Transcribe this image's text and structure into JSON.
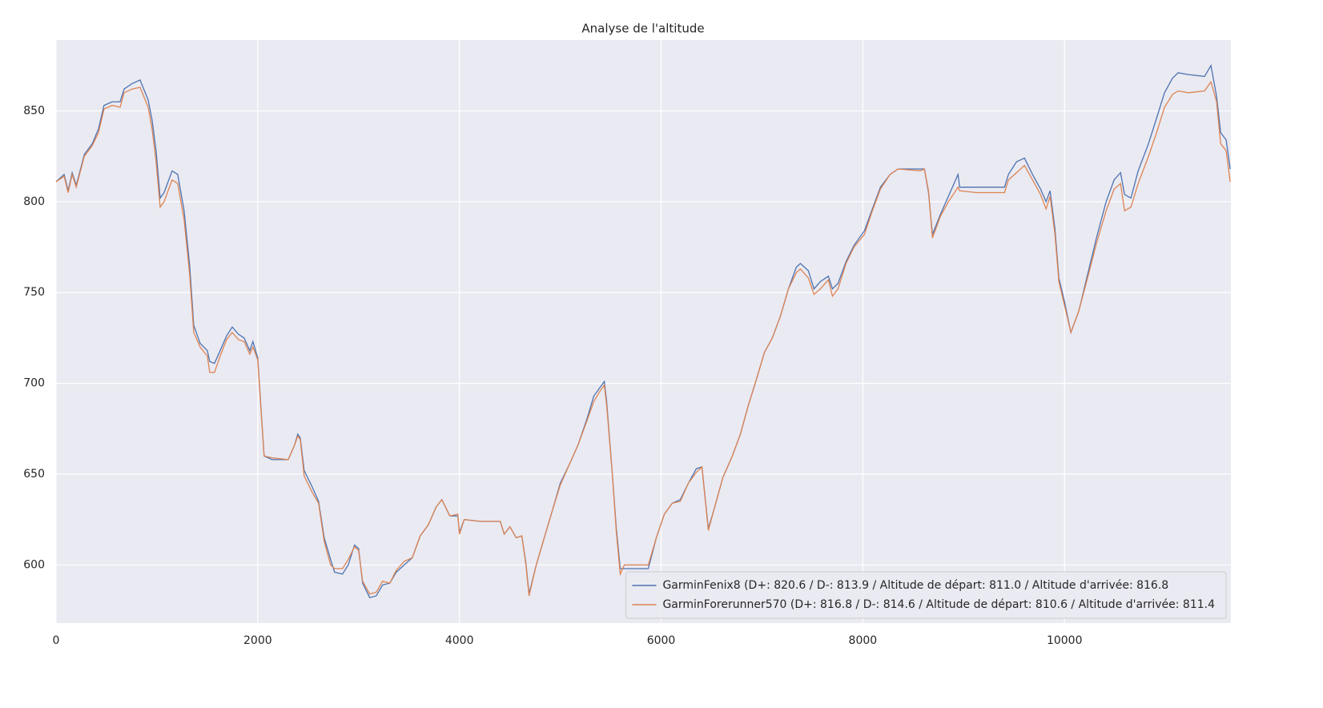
{
  "chart_data": {
    "type": "line",
    "title": "Analyse de l'altitude",
    "x": [
      0,
      80,
      120,
      160,
      200,
      280,
      360,
      420,
      476,
      556,
      635,
      675,
      754,
      833,
      913,
      952,
      992,
      1032,
      1071,
      1151,
      1206,
      1270,
      1325,
      1365,
      1429,
      1500,
      1524,
      1571,
      1627,
      1690,
      1746,
      1810,
      1865,
      1921,
      1952,
      2000,
      2063,
      2143,
      2302,
      2365,
      2397,
      2421,
      2460,
      2540,
      2603,
      2659,
      2722,
      2762,
      2841,
      2897,
      2960,
      3000,
      3040,
      3111,
      3175,
      3238,
      3310,
      3373,
      3452,
      3532,
      3611,
      3690,
      3770,
      3825,
      3905,
      3984,
      4000,
      4048,
      4206,
      4405,
      4444,
      4500,
      4563,
      4619,
      4659,
      4690,
      4762,
      4841,
      4921,
      5000,
      5095,
      5175,
      5262,
      5333,
      5397,
      5437,
      5460,
      5516,
      5556,
      5595,
      5635,
      5873,
      5952,
      6032,
      6111,
      6190,
      6270,
      6349,
      6405,
      6468,
      6532,
      6611,
      6706,
      6786,
      6865,
      6944,
      7024,
      7103,
      7183,
      7262,
      7341,
      7381,
      7460,
      7516,
      7579,
      7659,
      7698,
      7754,
      7833,
      7913,
      8016,
      8095,
      8175,
      8270,
      8349,
      8571,
      8611,
      8651,
      8690,
      8770,
      8849,
      8944,
      8960,
      9127,
      9405,
      9444,
      9524,
      9603,
      9683,
      9762,
      9817,
      9857,
      9905,
      9944,
      10000,
      10063,
      10143,
      10238,
      10317,
      10413,
      10492,
      10556,
      10595,
      10659,
      10730,
      10833,
      10913,
      10992,
      11071,
      11127,
      11230,
      11389,
      11452,
      11508,
      11548,
      11603,
      11643
    ],
    "series": [
      {
        "name": "GarminFenix8 (D+: 820.6 / D-: 813.9 / Altitude de départ: 811.0 / Altitude d'arrivée: 816.8",
        "color": "#4c72b0",
        "values": [
          811,
          815,
          806,
          816,
          809,
          826,
          832,
          840,
          853,
          855,
          855,
          862,
          865,
          867,
          856,
          845,
          828,
          802,
          805,
          817,
          815,
          795,
          765,
          732,
          722,
          718,
          712,
          711,
          718,
          726,
          731,
          727,
          725,
          718,
          723,
          714,
          660,
          658,
          658,
          666,
          672,
          670,
          652,
          643,
          635,
          615,
          603,
          596,
          595,
          600,
          611,
          609,
          590,
          582,
          583,
          589,
          590,
          596,
          600,
          604,
          616,
          622,
          632,
          636,
          627,
          627,
          618,
          625,
          624,
          624,
          617,
          621,
          615,
          616,
          601,
          584,
          600,
          615,
          630,
          645,
          656,
          666,
          680,
          693,
          698,
          701,
          690,
          650,
          620,
          598,
          598,
          598,
          615,
          628,
          634,
          636,
          645,
          653,
          654,
          620,
          632,
          648,
          660,
          672,
          688,
          702,
          717,
          725,
          737,
          752,
          764,
          766,
          762,
          752,
          756,
          759,
          752,
          755,
          767,
          776,
          784,
          796,
          808,
          815,
          818,
          818,
          818,
          805,
          782,
          793,
          803,
          815,
          808,
          808,
          808,
          815,
          822,
          824,
          815,
          807,
          800,
          806,
          785,
          758,
          745,
          728,
          740,
          762,
          780,
          800,
          812,
          816,
          804,
          802,
          817,
          832,
          846,
          860,
          868,
          871,
          870,
          869,
          875,
          858,
          838,
          834,
          818
        ]
      },
      {
        "name": "GarminForerunner570 (D+: 816.8 / D-: 814.6 / Altitude de départ: 810.6 / Altitude d'arrivée: 811.4",
        "color": "#dd8452",
        "values": [
          811,
          814,
          805,
          815,
          808,
          825,
          831,
          838,
          851,
          853,
          852,
          860,
          862,
          863,
          852,
          840,
          822,
          797,
          800,
          812,
          810,
          790,
          760,
          728,
          720,
          715,
          706,
          706,
          715,
          724,
          728,
          724,
          723,
          716,
          720,
          713,
          660,
          659,
          658,
          666,
          671,
          669,
          649,
          640,
          634,
          613,
          600,
          598,
          598,
          603,
          610,
          608,
          591,
          584,
          585,
          591,
          590,
          597,
          602,
          604,
          616,
          622,
          632,
          636,
          627,
          628,
          617,
          625,
          624,
          624,
          617,
          621,
          615,
          616,
          600,
          583,
          600,
          615,
          630,
          644,
          656,
          666,
          679,
          690,
          696,
          699,
          688,
          650,
          618,
          595,
          600,
          600,
          615,
          628,
          634,
          635,
          645,
          651,
          654,
          619,
          632,
          648,
          660,
          672,
          688,
          702,
          717,
          725,
          737,
          752,
          761,
          763,
          758,
          749,
          752,
          757,
          748,
          752,
          766,
          775,
          782,
          795,
          807,
          815,
          818,
          817,
          818,
          806,
          780,
          792,
          800,
          808,
          806,
          805,
          805,
          812,
          816,
          820,
          812,
          804,
          796,
          803,
          782,
          756,
          743,
          728,
          740,
          760,
          777,
          795,
          807,
          810,
          795,
          797,
          810,
          825,
          838,
          852,
          859,
          861,
          860,
          861,
          866,
          855,
          832,
          828,
          811
        ]
      }
    ],
    "xlim": [
      0,
      11650
    ],
    "ylim": [
      568,
      889
    ],
    "xticks": [
      0,
      2000,
      4000,
      6000,
      8000,
      10000
    ],
    "yticks": [
      600,
      650,
      700,
      750,
      800,
      850
    ],
    "grid": true,
    "legend": "lower right"
  }
}
